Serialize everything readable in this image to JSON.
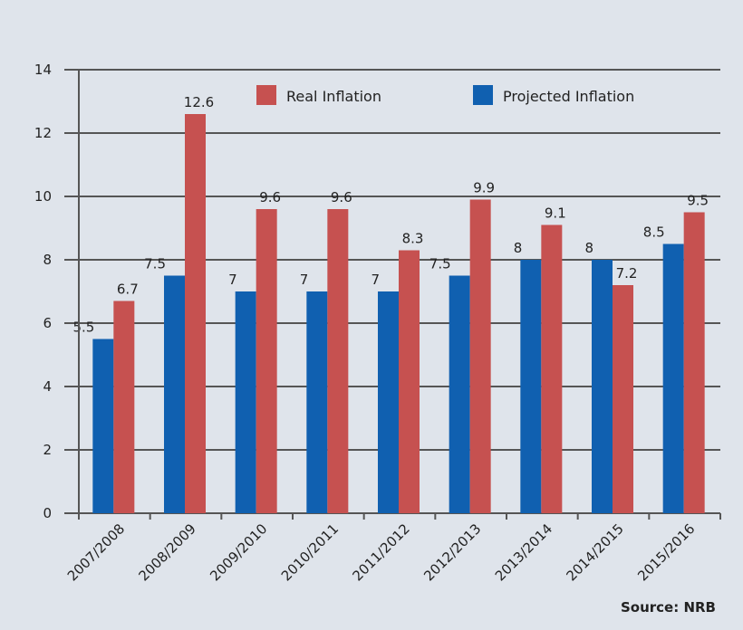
{
  "chart_data": {
    "type": "bar",
    "categories": [
      "2007/2008",
      "2008/2009",
      "2009/2010",
      "2010/2011",
      "2011/2012",
      "2012/2013",
      "2013/2014",
      "2014/2015",
      "2015/2016"
    ],
    "series": [
      {
        "name": "Projected Inflation",
        "color": "#1060b0",
        "values": [
          5.5,
          7.5,
          7,
          7,
          7,
          7.5,
          8,
          8,
          8.5
        ]
      },
      {
        "name": "Real Inflation",
        "color": "#c65150",
        "values": [
          6.7,
          12.6,
          9.6,
          9.6,
          8.3,
          9.9,
          9.1,
          7.2,
          9.5
        ]
      }
    ],
    "yticks": [
      0,
      2,
      4,
      6,
      8,
      10,
      12,
      14
    ],
    "ylim": [
      0,
      14
    ],
    "grid": true,
    "legend": "top",
    "source": "Source: NRB"
  }
}
